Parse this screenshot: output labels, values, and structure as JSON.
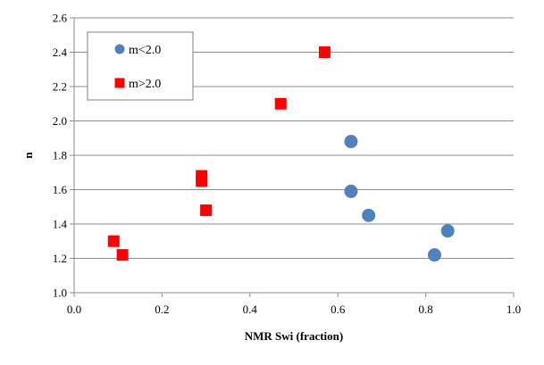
{
  "chart_data": {
    "type": "scatter",
    "title": "",
    "xlabel": "NMR Swi (fraction)",
    "ylabel": "n",
    "xlim": [
      0.0,
      1.0
    ],
    "ylim": [
      1.0,
      2.6
    ],
    "x_ticks": [
      "0.0",
      "0.2",
      "0.4",
      "0.6",
      "0.8",
      "1.0"
    ],
    "y_ticks": [
      "1.0",
      "1.2",
      "1.4",
      "1.6",
      "1.8",
      "2.0",
      "2.2",
      "2.4",
      "2.6"
    ],
    "grid": "horizontal",
    "legend_position": "top-left",
    "series": [
      {
        "name": "m<2.0",
        "marker": "circle",
        "color": "#4f81bd",
        "points": [
          {
            "x": 0.63,
            "y": 1.88
          },
          {
            "x": 0.63,
            "y": 1.59
          },
          {
            "x": 0.67,
            "y": 1.45
          },
          {
            "x": 0.85,
            "y": 1.36
          },
          {
            "x": 0.82,
            "y": 1.22
          }
        ]
      },
      {
        "name": "m>2.0",
        "marker": "square",
        "color": "#ff0000",
        "points": [
          {
            "x": 0.57,
            "y": 2.4
          },
          {
            "x": 0.47,
            "y": 2.1
          },
          {
            "x": 0.29,
            "y": 1.68
          },
          {
            "x": 0.29,
            "y": 1.65
          },
          {
            "x": 0.3,
            "y": 1.48
          },
          {
            "x": 0.09,
            "y": 1.3
          },
          {
            "x": 0.11,
            "y": 1.22
          }
        ]
      }
    ]
  }
}
